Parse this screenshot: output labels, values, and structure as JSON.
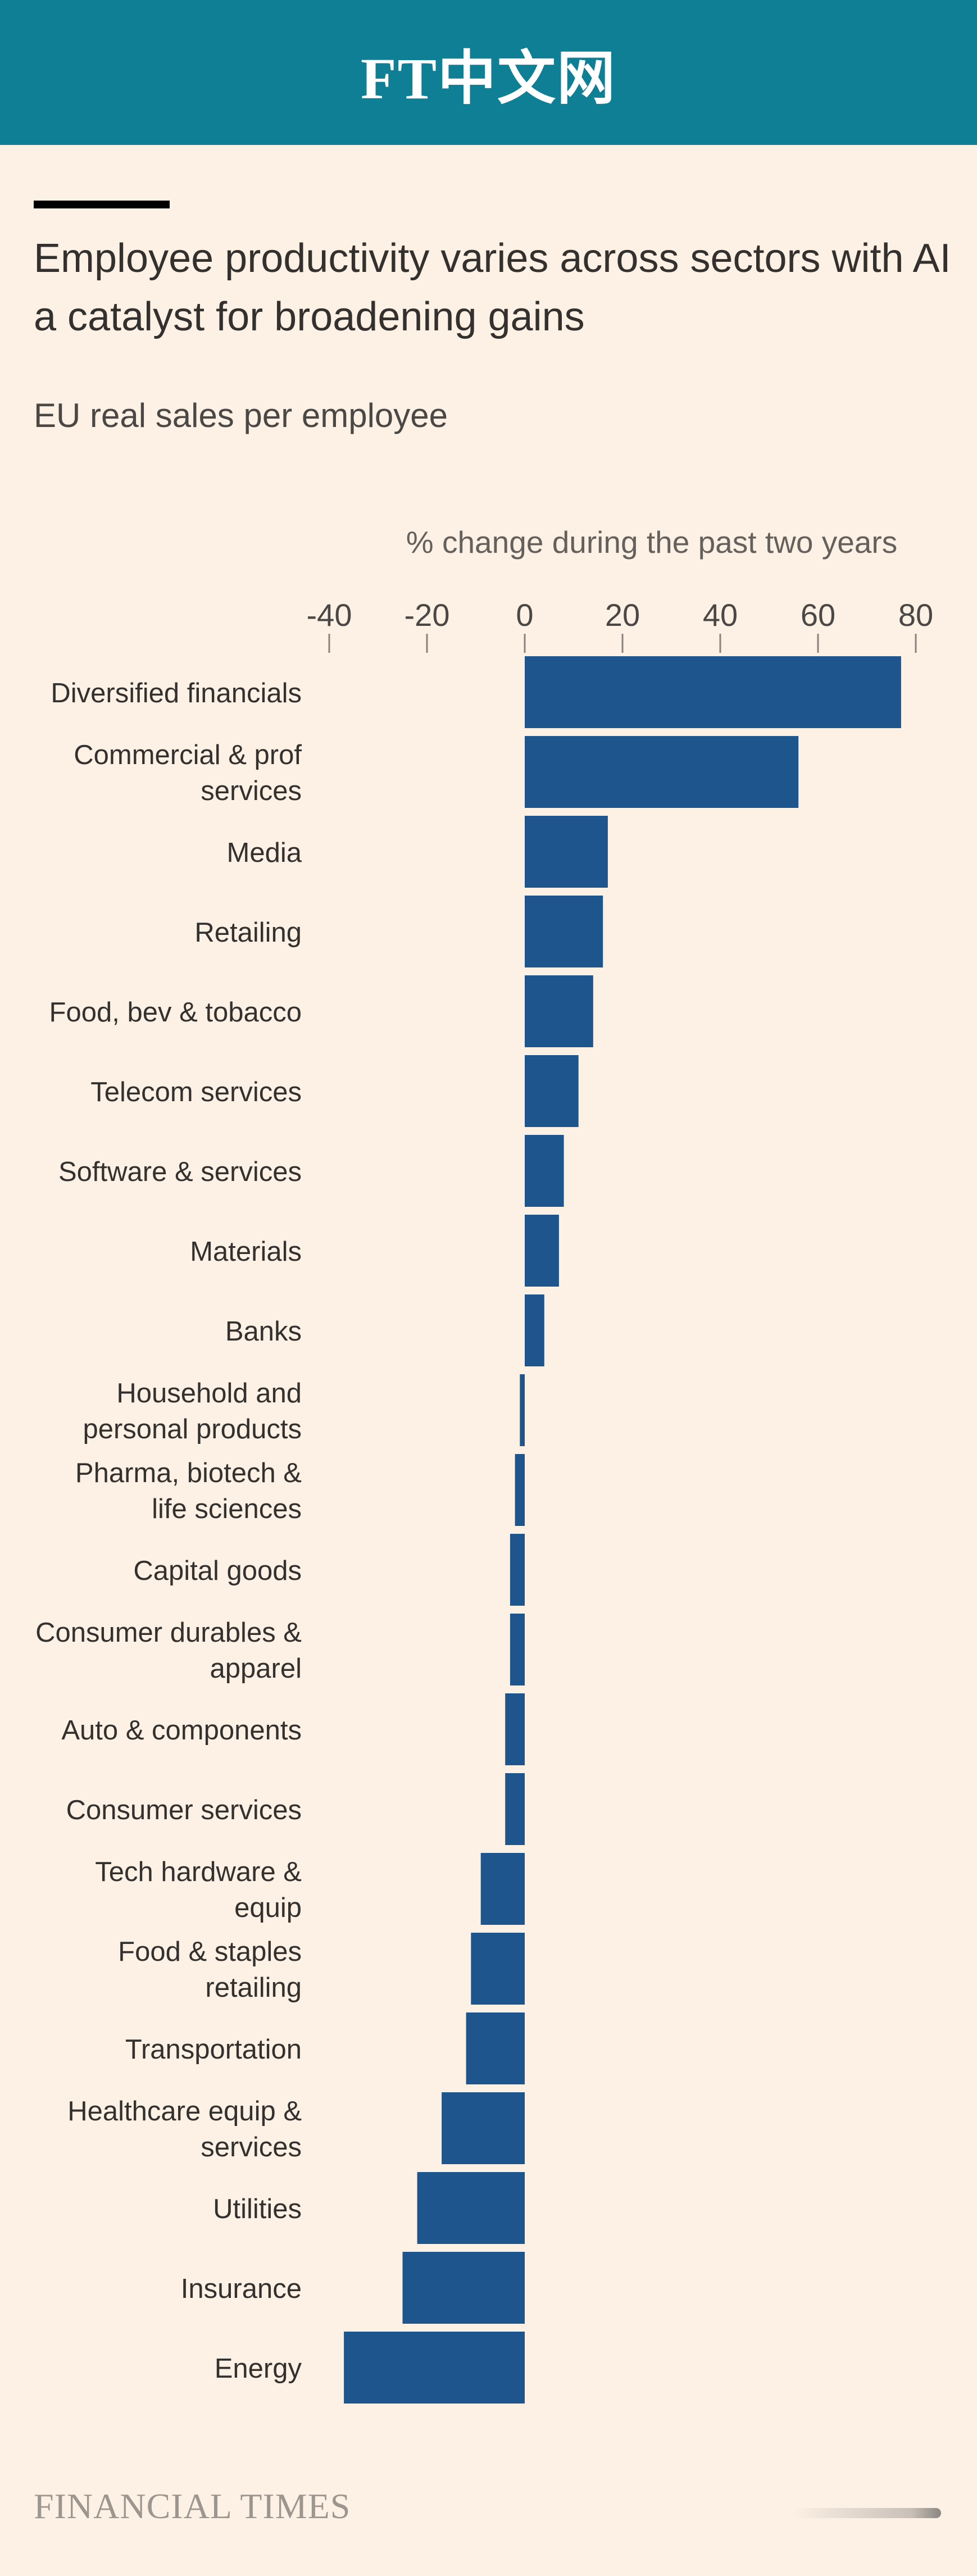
{
  "header": {
    "logo_text": "FT中文网"
  },
  "title": "Employee productivity varies across sectors with AI a catalyst for broadening gains",
  "subtitle": "EU real sales per employee",
  "footer": {
    "brand": "FINANCIAL TIMES"
  },
  "colors": {
    "header_bg": "#0f7f96",
    "page_bg": "#fdf1e6",
    "bar": "#1e558c",
    "tick": "#8a837d"
  },
  "chart_data": {
    "type": "bar",
    "orientation": "horizontal",
    "title": "Employee productivity varies across sectors with AI a catalyst for broadening gains",
    "subtitle": "EU real sales per employee",
    "xlabel": "% change during the past two years",
    "ylabel": "",
    "xlim": [
      -40,
      80
    ],
    "xticks": [
      -40,
      -20,
      0,
      20,
      40,
      60,
      80
    ],
    "xtick_labels": [
      "-40",
      "-20",
      "0",
      "20",
      "40",
      "60",
      "80"
    ],
    "grid": false,
    "categories": [
      [
        "Diversified financials"
      ],
      [
        "Commercial & prof",
        "services"
      ],
      [
        "Media"
      ],
      [
        "Retailing"
      ],
      [
        "Food, bev & tobacco"
      ],
      [
        "Telecom services"
      ],
      [
        "Software & services"
      ],
      [
        "Materials"
      ],
      [
        "Banks"
      ],
      [
        "Household and",
        "personal products"
      ],
      [
        "Pharma, biotech &",
        "life sciences"
      ],
      [
        "Capital goods"
      ],
      [
        "Consumer durables &",
        "apparel"
      ],
      [
        "Auto & components"
      ],
      [
        "Consumer services"
      ],
      [
        "Tech hardware &",
        "equip"
      ],
      [
        "Food & staples",
        "retailing"
      ],
      [
        "Transportation"
      ],
      [
        "Healthcare equip &",
        "services"
      ],
      [
        "Utilities"
      ],
      [
        "Insurance"
      ],
      [
        "Energy"
      ]
    ],
    "values": [
      77,
      56,
      17,
      16,
      14,
      11,
      8,
      7,
      4,
      -1,
      -2,
      -3,
      -3,
      -4,
      -4,
      -9,
      -11,
      -12,
      -17,
      -22,
      -25,
      -37
    ]
  }
}
